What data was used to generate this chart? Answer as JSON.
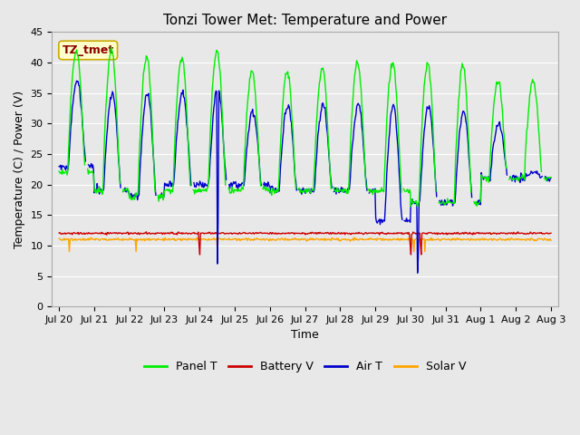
{
  "title": "Tonzi Tower Met: Temperature and Power",
  "xlabel": "Time",
  "ylabel": "Temperature (C) / Power (V)",
  "ylim": [
    0,
    45
  ],
  "yticks": [
    0,
    5,
    10,
    15,
    20,
    25,
    30,
    35,
    40,
    45
  ],
  "annotation": "TZ_tmet",
  "annotation_color": "#8B0000",
  "annotation_bg": "#FFFFCC",
  "annotation_border": "#CCAA00",
  "panel_t_color": "#00EE00",
  "battery_v_color": "#CC0000",
  "air_t_color": "#0000CC",
  "solar_v_color": "#FFA500",
  "fig_bg_color": "#E8E8E8",
  "plot_bg_color": "#E8E8E8",
  "grid_color": "#FFFFFF",
  "legend_labels": [
    "Panel T",
    "Battery V",
    "Air T",
    "Solar V"
  ],
  "tick_label_fontsize": 8,
  "axis_label_fontsize": 9,
  "title_fontsize": 11
}
